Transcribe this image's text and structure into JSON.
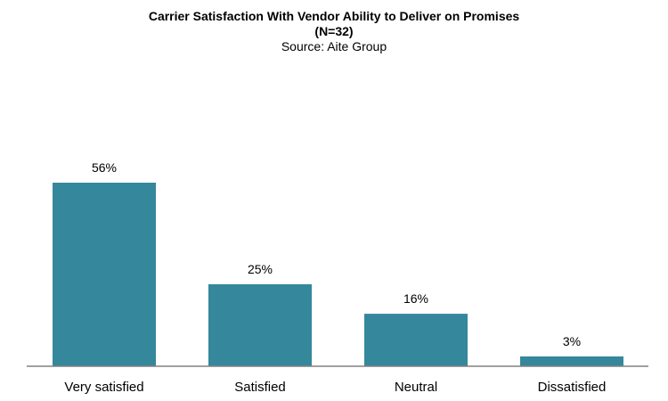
{
  "chart_data": {
    "type": "bar",
    "title": "Carrier Satisfaction With Vendor Ability to Deliver on Promises",
    "subtitle": "(N=32)",
    "source": "Source: Aite Group",
    "categories": [
      "Very satisfied",
      "Satisfied",
      "Neutral",
      "Dissatisfied"
    ],
    "values": [
      56,
      25,
      16,
      3
    ],
    "value_labels": [
      "56%",
      "25%",
      "16%",
      "3%"
    ],
    "unit": "%",
    "ylim": [
      0,
      60
    ],
    "grid": false,
    "legend": "none",
    "bar_color": "#35879c",
    "axis_color": "#808080"
  }
}
